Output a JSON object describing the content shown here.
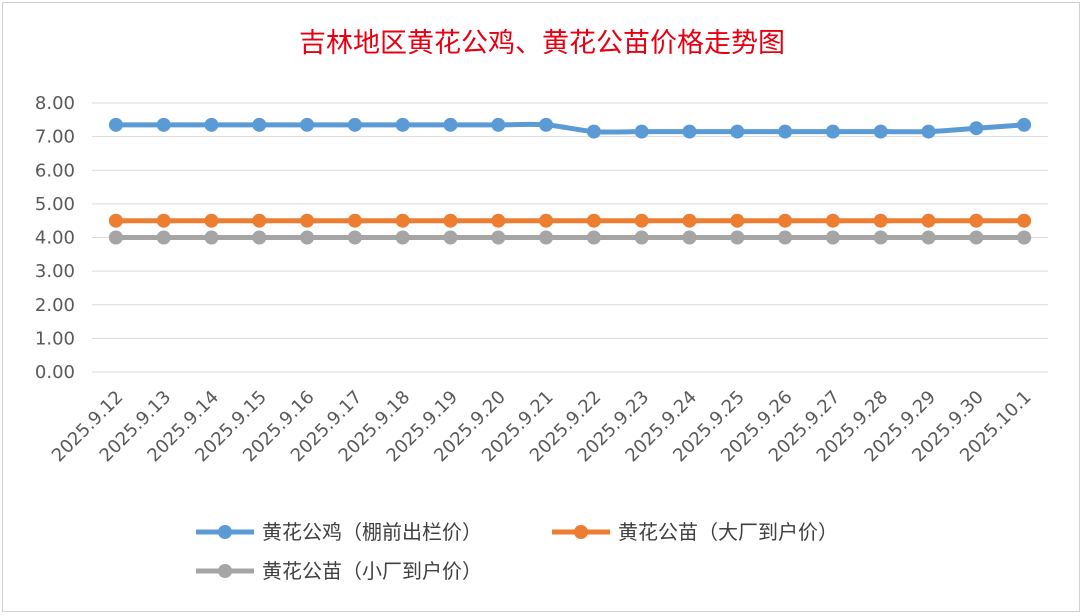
{
  "chart_data": {
    "type": "line",
    "title": "吉林地区黄花公鸡、黄花公苗价格走势图",
    "xlabel": "",
    "ylabel": "",
    "ylim": [
      0,
      8
    ],
    "ytick_step": 1,
    "ytick_labels": [
      "0.00",
      "1.00",
      "2.00",
      "3.00",
      "4.00",
      "5.00",
      "6.00",
      "7.00",
      "8.00"
    ],
    "grid": true,
    "legend_position": "bottom",
    "categories": [
      "2025.9.12",
      "2025.9.13",
      "2025.9.14",
      "2025.9.15",
      "2025.9.16",
      "2025.9.17",
      "2025.9.18",
      "2025.9.19",
      "2025.9.20",
      "2025.9.21",
      "2025.9.22",
      "2025.9.23",
      "2025.9.24",
      "2025.9.25",
      "2025.9.26",
      "2025.9.27",
      "2025.9.28",
      "2025.9.29",
      "2025.9.30",
      "2025.10.1"
    ],
    "series": [
      {
        "name": "黄花公鸡（棚前出栏价）",
        "color": "#5b9bd5",
        "smooth": true,
        "values": [
          7.35,
          7.35,
          7.35,
          7.35,
          7.35,
          7.35,
          7.35,
          7.35,
          7.35,
          7.35,
          7.15,
          7.15,
          7.15,
          7.15,
          7.15,
          7.15,
          7.15,
          7.15,
          7.25,
          7.35
        ]
      },
      {
        "name": "黄花公苗（大厂到户价）",
        "color": "#ed7d31",
        "smooth": false,
        "values": [
          4.5,
          4.5,
          4.5,
          4.5,
          4.5,
          4.5,
          4.5,
          4.5,
          4.5,
          4.5,
          4.5,
          4.5,
          4.5,
          4.5,
          4.5,
          4.5,
          4.5,
          4.5,
          4.5,
          4.5
        ]
      },
      {
        "name": "黄花公苗（小厂到户价）",
        "color": "#a5a5a5",
        "smooth": false,
        "values": [
          4.0,
          4.0,
          4.0,
          4.0,
          4.0,
          4.0,
          4.0,
          4.0,
          4.0,
          4.0,
          4.0,
          4.0,
          4.0,
          4.0,
          4.0,
          4.0,
          4.0,
          4.0,
          4.0,
          4.0
        ]
      }
    ]
  }
}
